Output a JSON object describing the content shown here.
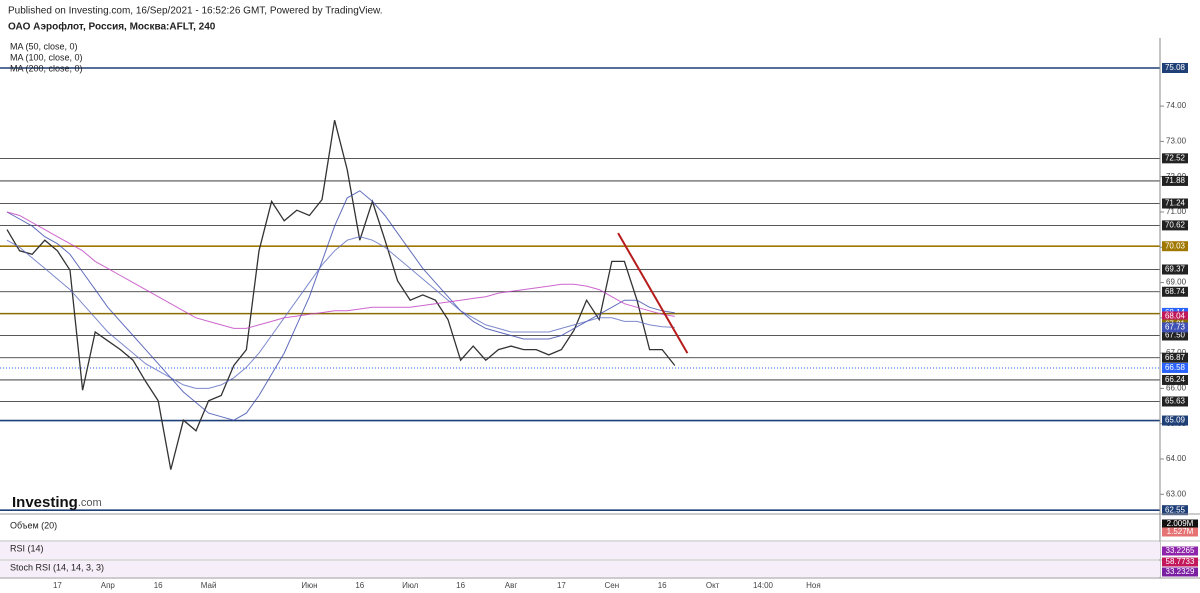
{
  "header": {
    "published": "Published on Investing.com, 16/Sep/2021 - 16:52:26 GMT, Powered by TradingView.",
    "symbol": "ОАО Аэрофлот, Россия, Москва:AFLT, 240"
  },
  "logo": {
    "brand": "Investing",
    "suffix": ".com"
  },
  "indicator_panes": [
    {
      "title": "Объем (20)",
      "readouts": [
        "2.009M",
        "1.527M"
      ]
    },
    {
      "title": "RSI (14)",
      "readouts": [
        "33.2265"
      ]
    },
    {
      "title": "Stoch RSI (14, 14, 3, 3)",
      "readouts": [
        "58.7733",
        "33.2329"
      ]
    }
  ],
  "chart_data": {
    "type": "line",
    "categories": [
      null,
      null,
      null,
      null,
      "17",
      null,
      null,
      null,
      "Апр",
      null,
      null,
      null,
      "16",
      null,
      null,
      null,
      "Май",
      null,
      null,
      null,
      null,
      null,
      null,
      null,
      "Июн",
      null,
      null,
      null,
      "16",
      null,
      null,
      null,
      "Июл",
      null,
      null,
      null,
      "16",
      null,
      null,
      null,
      "Авг",
      null,
      null,
      null,
      "17",
      null,
      null,
      null,
      "Сен",
      null,
      null,
      null,
      "16",
      null,
      null,
      null,
      "Окт",
      null,
      null,
      null,
      "14:00",
      null,
      null,
      null,
      "Ноя",
      null
    ],
    "series": [
      {
        "color": "#333333",
        "values": [
          70.5,
          69.9,
          69.8,
          70.2,
          69.9,
          69.35,
          65.95,
          67.6,
          67.35,
          67.1,
          66.8,
          66.2,
          65.65,
          63.7,
          65.1,
          64.8,
          65.65,
          65.8,
          66.65,
          67.1,
          69.9,
          71.3,
          70.75,
          71.05,
          70.9,
          71.35,
          73.6,
          72.2,
          70.2,
          71.3,
          70.2,
          69.05,
          68.5,
          68.65,
          68.5,
          67.95,
          66.8,
          67.2,
          66.8,
          67.1,
          67.2,
          67.1,
          67.1,
          66.95,
          67.1,
          67.65,
          68.5,
          67.95,
          69.6,
          69.6,
          68.5,
          67.1,
          67.1,
          66.65,
          null,
          null,
          null,
          null,
          null,
          null,
          null,
          null,
          null,
          null,
          null,
          null
        ]
      },
      {
        "name": "MA (50, close, 0)",
        "color": "#3949ab",
        "values": [
          71.0,
          70.8,
          70.6,
          70.3,
          70.1,
          69.8,
          69.3,
          68.8,
          68.3,
          67.9,
          67.5,
          67.1,
          66.7,
          66.3,
          65.9,
          65.6,
          65.3,
          65.2,
          65.1,
          65.3,
          65.8,
          66.4,
          67.0,
          67.8,
          68.6,
          69.6,
          70.6,
          71.4,
          71.6,
          71.3,
          70.9,
          70.4,
          69.9,
          69.4,
          69.0,
          68.6,
          68.2,
          67.9,
          67.7,
          67.6,
          67.5,
          67.4,
          67.4,
          67.4,
          67.5,
          67.7,
          67.9,
          68.1,
          68.3,
          68.5,
          68.5,
          68.3,
          68.2,
          68.14,
          null,
          null,
          null,
          null,
          null,
          null,
          null,
          null,
          null,
          null,
          null,
          null
        ]
      },
      {
        "name": "MA (100, close, 0)",
        "color": "#5c6bc0",
        "values": [
          70.2,
          70.0,
          69.7,
          69.4,
          69.1,
          68.8,
          68.4,
          68.0,
          67.6,
          67.3,
          67.0,
          66.7,
          66.5,
          66.3,
          66.1,
          66.0,
          66.0,
          66.1,
          66.3,
          66.6,
          67.0,
          67.5,
          68.0,
          68.5,
          69.0,
          69.5,
          69.9,
          70.2,
          70.3,
          70.2,
          70.0,
          69.7,
          69.4,
          69.1,
          68.8,
          68.5,
          68.2,
          68.0,
          67.8,
          67.7,
          67.6,
          67.6,
          67.6,
          67.6,
          67.7,
          67.8,
          67.9,
          68.0,
          68.0,
          67.9,
          67.9,
          67.8,
          67.75,
          67.73,
          null,
          null,
          null,
          null,
          null,
          null,
          null,
          null,
          null,
          null,
          null,
          null
        ]
      },
      {
        "name": "MA (200, close, 0)",
        "color": "#c040c0",
        "values": [
          71.0,
          70.9,
          70.7,
          70.5,
          70.3,
          70.1,
          69.9,
          69.6,
          69.4,
          69.2,
          69.0,
          68.8,
          68.6,
          68.4,
          68.2,
          68.0,
          67.9,
          67.8,
          67.7,
          67.7,
          67.8,
          67.9,
          68.0,
          68.05,
          68.1,
          68.15,
          68.2,
          68.2,
          68.25,
          68.3,
          68.3,
          68.3,
          68.3,
          68.35,
          68.4,
          68.45,
          68.5,
          68.55,
          68.6,
          68.7,
          68.75,
          68.8,
          68.85,
          68.9,
          68.95,
          68.95,
          68.9,
          68.8,
          68.6,
          68.4,
          68.3,
          68.2,
          68.1,
          68.04,
          null,
          null,
          null,
          null,
          null,
          null,
          null,
          null,
          null,
          null,
          null,
          null
        ]
      }
    ],
    "ylim": [
      62.47,
      75.93
    ],
    "yticks": [
      {
        "value": 63,
        "label": "63.00"
      },
      {
        "value": 64,
        "label": "64.00"
      },
      {
        "value": 65,
        "label": "65.00"
      },
      {
        "value": 66,
        "label": "66.00"
      },
      {
        "value": 67,
        "label": "67.00"
      },
      {
        "value": 68,
        "label": "68.00"
      },
      {
        "value": 69,
        "label": "69.00"
      },
      {
        "value": 70,
        "label": "70.00"
      },
      {
        "value": 71,
        "label": "71.00"
      },
      {
        "value": 72,
        "label": "72.00"
      },
      {
        "value": 73,
        "label": "73.00"
      },
      {
        "value": 74,
        "label": "74.00"
      }
    ],
    "levels": [
      {
        "value": 75.08,
        "color": "#1f3f77"
      },
      {
        "value": 72.52,
        "color": "#222222"
      },
      {
        "value": 71.88,
        "color": "#222222"
      },
      {
        "value": 71.24,
        "color": "#222222"
      },
      {
        "value": 70.62,
        "color": "#222222"
      },
      {
        "value": 70.03,
        "color": "#a07800"
      },
      {
        "value": 69.37,
        "color": "#222222"
      },
      {
        "value": 68.74,
        "color": "#222222"
      },
      {
        "value": 68.12,
        "color": "#8a6d00"
      },
      {
        "value": {
          "value": 67.5,
          "label": "67.50"
        },
        "color": "#222222"
      },
      {
        "value": 66.87,
        "color": "#222222"
      },
      {
        "value": 66.24,
        "color": "#222222"
      },
      {
        "value": 65.63,
        "color": "#222222"
      },
      {
        "value": 65.09,
        "color": "#1f3f77"
      },
      {
        "value": 62.55,
        "color": "#1f3f77"
      }
    ],
    "price_tags": [
      {
        "value": 68.14,
        "color": "#2962ff"
      },
      {
        "value": 68.04,
        "color": "#c2185b"
      },
      {
        "value": 67.81,
        "color": "#8d6e00"
      },
      {
        "value": 67.73,
        "color": "#3f51b5"
      },
      {
        "value": 66.58,
        "color": "#2962ff"
      }
    ],
    "trendline": {
      "color": "#b71c1c",
      "x": [
        48.5,
        54
      ],
      "y": [
        70.4,
        67.0
      ]
    }
  }
}
